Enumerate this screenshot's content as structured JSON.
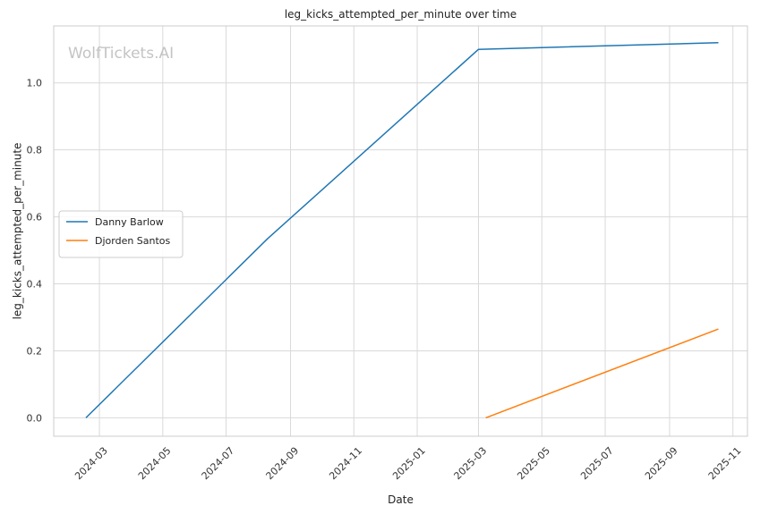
{
  "chart_data": {
    "type": "line",
    "title": "leg_kicks_attempted_per_minute over time",
    "xlabel": "Date",
    "ylabel": "leg_kicks_attempted_per_minute",
    "watermark": "WolfTickets.AI",
    "x_range": [
      "2024-01-17",
      "2025-11-15"
    ],
    "ylim": [
      -0.055,
      1.17
    ],
    "x_ticks": [
      "2024-03",
      "2024-05",
      "2024-07",
      "2024-09",
      "2024-11",
      "2025-01",
      "2025-03",
      "2025-05",
      "2025-07",
      "2025-09",
      "2025-11"
    ],
    "y_ticks": [
      0.0,
      0.2,
      0.4,
      0.6,
      0.8,
      1.0
    ],
    "grid": true,
    "legend_position": "center-left",
    "series": [
      {
        "name": "Danny Barlow",
        "color": "#1f77b4",
        "points": [
          {
            "x": "2024-02-17",
            "y": 0.0
          },
          {
            "x": "2024-08-10",
            "y": 0.535
          },
          {
            "x": "2025-03-01",
            "y": 1.1
          },
          {
            "x": "2025-10-18",
            "y": 1.12
          }
        ]
      },
      {
        "name": "Djorden Santos",
        "color": "#ff7f0e",
        "points": [
          {
            "x": "2025-03-08",
            "y": 0.0
          },
          {
            "x": "2025-10-18",
            "y": 0.265
          }
        ]
      }
    ]
  }
}
